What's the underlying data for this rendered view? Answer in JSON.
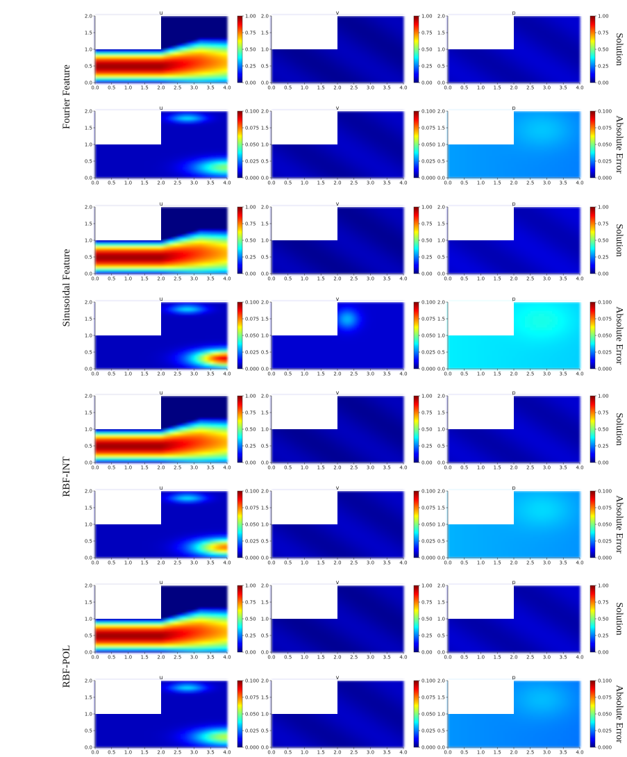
{
  "figure": {
    "groups": [
      "Fourier Feature",
      "Sinusoidal Feature",
      "RBF-INT",
      "RBF-POL"
    ],
    "row_types": [
      "Solution",
      "Absolute Error"
    ],
    "columns": [
      "u",
      "v",
      "p"
    ],
    "colors": {
      "colormap": "jet",
      "background": "#ffffff",
      "obstacle": "#ffffff"
    }
  },
  "chart_data": {
    "type": "heatmap",
    "grid": "off",
    "xlim": [
      0.0,
      4.0
    ],
    "ylim": [
      0.0,
      2.0
    ],
    "xticks": [
      "0.0",
      "0.5",
      "1.0",
      "1.5",
      "2.0",
      "2.5",
      "3.0",
      "3.5",
      "4.0"
    ],
    "yticks": [
      "0.0",
      "0.5",
      "1.0",
      "1.5",
      "2.0"
    ],
    "obstacle": {
      "x": [
        0.0,
        2.0
      ],
      "y": [
        1.0,
        2.0
      ]
    },
    "solution_colorbar": {
      "range": [
        0.0,
        1.0
      ],
      "ticks": [
        "0.00",
        "0.25",
        "0.50",
        "0.75",
        "1.00"
      ]
    },
    "error_colorbar": {
      "range": [
        0.0,
        0.1
      ],
      "ticks": [
        "0.000",
        "0.025",
        "0.050",
        "0.075",
        "0.100"
      ]
    },
    "panels": [
      {
        "group": "Fourier Feature",
        "row": "Solution",
        "field": "u",
        "pattern": "jet_u"
      },
      {
        "group": "Fourier Feature",
        "row": "Solution",
        "field": "v",
        "pattern": "flat",
        "level": 0.04
      },
      {
        "group": "Fourier Feature",
        "row": "Solution",
        "field": "p",
        "pattern": "flat",
        "level": 0.06
      },
      {
        "group": "Fourier Feature",
        "row": "Absolute Error",
        "field": "u",
        "pattern": "err_u",
        "peak": 0.045
      },
      {
        "group": "Fourier Feature",
        "row": "Absolute Error",
        "field": "v",
        "pattern": "flat",
        "level": 0.05
      },
      {
        "group": "Fourier Feature",
        "row": "Absolute Error",
        "field": "p",
        "pattern": "err_p",
        "level": 0.28
      },
      {
        "group": "Sinusoidal Feature",
        "row": "Solution",
        "field": "u",
        "pattern": "jet_u"
      },
      {
        "group": "Sinusoidal Feature",
        "row": "Solution",
        "field": "v",
        "pattern": "flat",
        "level": 0.04
      },
      {
        "group": "Sinusoidal Feature",
        "row": "Solution",
        "field": "p",
        "pattern": "flat",
        "level": 0.07
      },
      {
        "group": "Sinusoidal Feature",
        "row": "Absolute Error",
        "field": "u",
        "pattern": "err_u",
        "peak": 0.085
      },
      {
        "group": "Sinusoidal Feature",
        "row": "Absolute Error",
        "field": "v",
        "pattern": "err_v"
      },
      {
        "group": "Sinusoidal Feature",
        "row": "Absolute Error",
        "field": "p",
        "pattern": "err_p",
        "level": 0.36
      },
      {
        "group": "RBF-INT",
        "row": "Solution",
        "field": "u",
        "pattern": "jet_u"
      },
      {
        "group": "RBF-INT",
        "row": "Solution",
        "field": "v",
        "pattern": "flat",
        "level": 0.04
      },
      {
        "group": "RBF-INT",
        "row": "Solution",
        "field": "p",
        "pattern": "flat",
        "level": 0.06
      },
      {
        "group": "RBF-INT",
        "row": "Absolute Error",
        "field": "u",
        "pattern": "err_u",
        "peak": 0.07
      },
      {
        "group": "RBF-INT",
        "row": "Absolute Error",
        "field": "v",
        "pattern": "flat",
        "level": 0.05
      },
      {
        "group": "RBF-INT",
        "row": "Absolute Error",
        "field": "p",
        "pattern": "err_p",
        "level": 0.3
      },
      {
        "group": "RBF-POL",
        "row": "Solution",
        "field": "u",
        "pattern": "jet_u"
      },
      {
        "group": "RBF-POL",
        "row": "Solution",
        "field": "v",
        "pattern": "flat",
        "level": 0.04
      },
      {
        "group": "RBF-POL",
        "row": "Solution",
        "field": "p",
        "pattern": "flat",
        "level": 0.06
      },
      {
        "group": "RBF-POL",
        "row": "Absolute Error",
        "field": "u",
        "pattern": "err_u",
        "peak": 0.05
      },
      {
        "group": "RBF-POL",
        "row": "Absolute Error",
        "field": "v",
        "pattern": "flat",
        "level": 0.05
      },
      {
        "group": "RBF-POL",
        "row": "Absolute Error",
        "field": "p",
        "pattern": "err_p",
        "level": 0.27
      }
    ]
  }
}
